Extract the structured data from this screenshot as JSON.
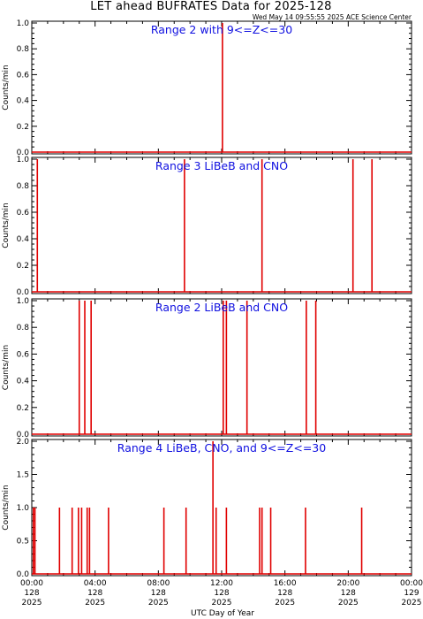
{
  "header": {
    "title": "LET ahead BUFRATES Data for 2025-128",
    "timestamp": "Wed May 14 09:55:55 2025 ACE Science Center"
  },
  "xaxis": {
    "label": "UTC Day of Year",
    "range_hours": [
      0,
      24
    ],
    "ticks": [
      {
        "hour": 0,
        "time": "00:00",
        "day": "128",
        "year": "2025"
      },
      {
        "hour": 4,
        "time": "04:00",
        "day": "128",
        "year": "2025"
      },
      {
        "hour": 8,
        "time": "08:00",
        "day": "128",
        "year": "2025"
      },
      {
        "hour": 12,
        "time": "12:00",
        "day": "128",
        "year": "2025"
      },
      {
        "hour": 16,
        "time": "16:00",
        "day": "128",
        "year": "2025"
      },
      {
        "hour": 20,
        "time": "20:00",
        "day": "128",
        "year": "2025"
      },
      {
        "hour": 24,
        "time": "00:00",
        "day": "129",
        "year": "2025"
      }
    ]
  },
  "colors": {
    "data": "#e00000",
    "panel_title": "#1010e0",
    "axes": "#000000"
  },
  "chart_data": [
    {
      "type": "line",
      "title": "Range 2 with 9<=Z<=30",
      "ylabel": "Counts/min",
      "ylim": [
        0,
        1.0
      ],
      "yticks": [
        "0.0",
        "0.2",
        "0.4",
        "0.6",
        "0.8",
        "1.0"
      ],
      "spikes": [
        {
          "hour": 12.05,
          "value": 1.0
        }
      ]
    },
    {
      "type": "line",
      "title": "Range 3 LiBeB and CNO",
      "ylabel": "Counts/min",
      "ylim": [
        0,
        1.0
      ],
      "yticks": [
        "0.0",
        "0.2",
        "0.4",
        "0.6",
        "0.8",
        "1.0"
      ],
      "spikes": [
        {
          "hour": 0.35,
          "value": 1.0
        },
        {
          "hour": 9.65,
          "value": 1.0
        },
        {
          "hour": 14.55,
          "value": 1.0
        },
        {
          "hour": 20.3,
          "value": 1.0
        },
        {
          "hour": 21.5,
          "value": 1.0
        }
      ]
    },
    {
      "type": "line",
      "title": "Range 2 LiBeB and CNO",
      "ylabel": "Counts/min",
      "ylim": [
        0,
        1.0
      ],
      "yticks": [
        "0.0",
        "0.2",
        "0.4",
        "0.6",
        "0.8",
        "1.0"
      ],
      "spikes": [
        {
          "hour": 3.0,
          "value": 1.0
        },
        {
          "hour": 3.35,
          "value": 1.0
        },
        {
          "hour": 3.75,
          "value": 1.0
        },
        {
          "hour": 12.1,
          "value": 1.0
        },
        {
          "hour": 12.3,
          "value": 1.0
        },
        {
          "hour": 13.6,
          "value": 1.0
        },
        {
          "hour": 17.35,
          "value": 1.0
        },
        {
          "hour": 17.95,
          "value": 1.0
        }
      ]
    },
    {
      "type": "line",
      "title": "Range 4 LiBeB, CNO, and 9<=Z<=30",
      "ylabel": "Counts/min",
      "ylim": [
        0,
        2.0
      ],
      "yticks": [
        "0.0",
        "0.5",
        "1.0",
        "1.5",
        "2.0"
      ],
      "spikes": [
        {
          "hour": 0.1,
          "value": 1.0
        },
        {
          "hour": 0.2,
          "value": 1.0
        },
        {
          "hour": 1.75,
          "value": 1.0
        },
        {
          "hour": 2.55,
          "value": 1.0
        },
        {
          "hour": 2.95,
          "value": 1.0
        },
        {
          "hour": 3.15,
          "value": 1.0
        },
        {
          "hour": 3.5,
          "value": 1.0
        },
        {
          "hour": 3.65,
          "value": 1.0
        },
        {
          "hour": 4.85,
          "value": 1.0
        },
        {
          "hour": 8.35,
          "value": 1.0
        },
        {
          "hour": 9.75,
          "value": 1.0
        },
        {
          "hour": 11.45,
          "value": 2.0
        },
        {
          "hour": 11.65,
          "value": 1.0
        },
        {
          "hour": 12.3,
          "value": 1.0
        },
        {
          "hour": 14.4,
          "value": 1.0
        },
        {
          "hour": 14.55,
          "value": 1.0
        },
        {
          "hour": 15.1,
          "value": 1.0
        },
        {
          "hour": 17.3,
          "value": 1.0
        },
        {
          "hour": 20.85,
          "value": 1.0
        }
      ]
    }
  ]
}
